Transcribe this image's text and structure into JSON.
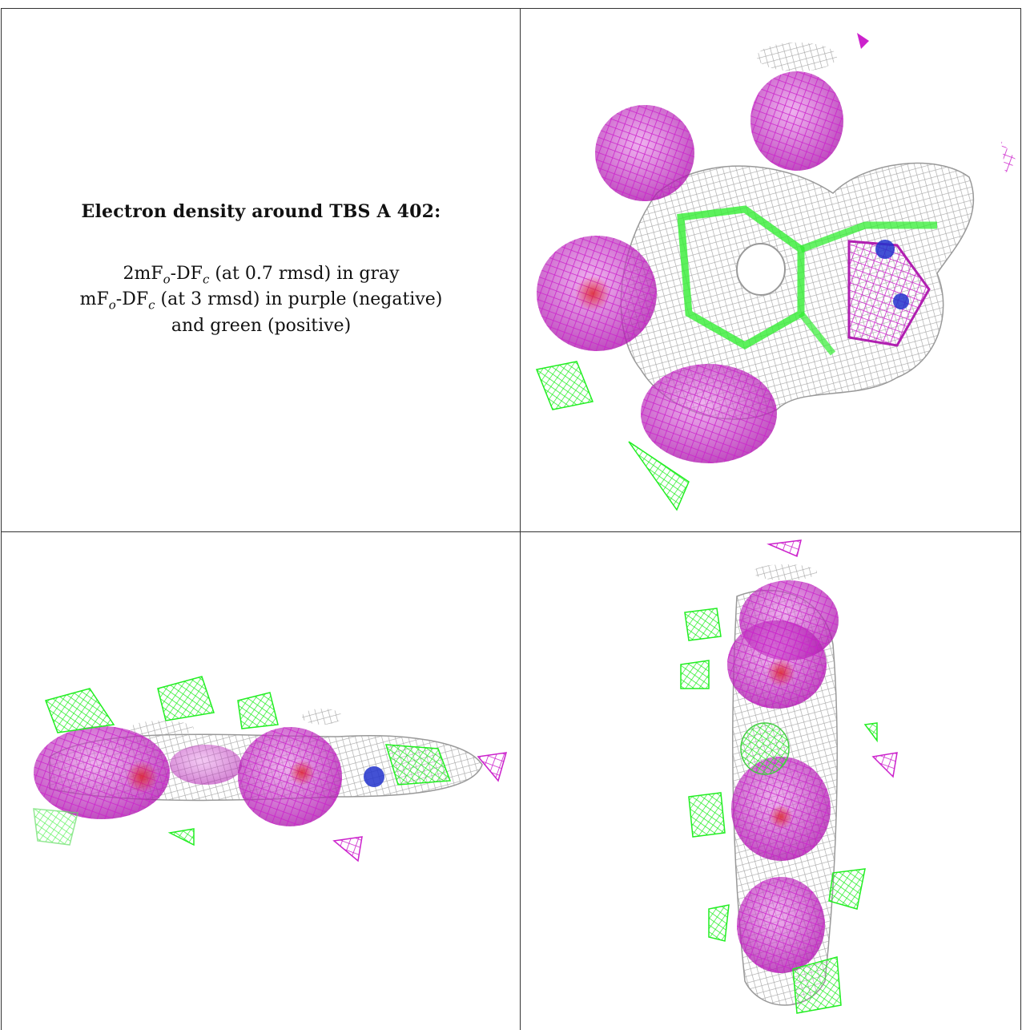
{
  "caption": {
    "title": "Electron density around TBS A 402:",
    "line1_a": "2mF",
    "line1_sub1": "o",
    "line1_b": "-DF",
    "line1_sub2": "c",
    "line1_c": " (at 0.7 rmsd) in gray",
    "line2_a": "mF",
    "line2_sub1": "o",
    "line2_b": "-DF",
    "line2_sub2": "c",
    "line2_c": " (at 3 rmsd) in purple (negative)",
    "line3": "and green (positive)"
  },
  "colors": {
    "gray_mesh": "#b4b4b4",
    "purple_mesh": "#cc22cc",
    "green_mesh": "#22ee22",
    "oxygen_red": "#dd2222",
    "nitrogen_blue": "#2233cc",
    "border": "#222222"
  },
  "panels": [
    {
      "name": "top-right-view",
      "description_icon": "density-view-top"
    },
    {
      "name": "bottom-left-view",
      "description_icon": "density-view-side"
    },
    {
      "name": "bottom-right-view",
      "description_icon": "density-view-edge"
    }
  ]
}
